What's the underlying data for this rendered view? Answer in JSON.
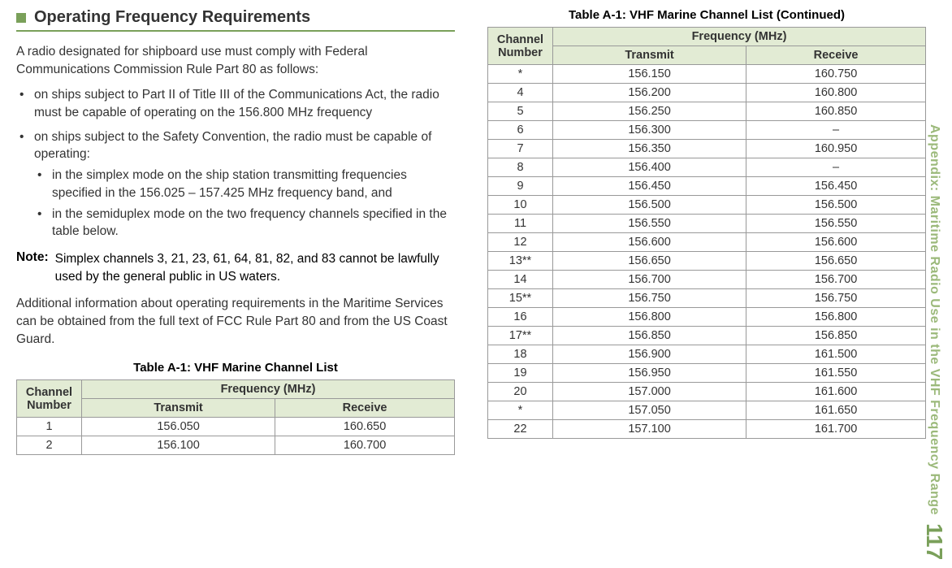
{
  "header": {
    "title": "Operating Frequency Requirements"
  },
  "intro": "A radio designated for shipboard use must comply with Federal Communications Commission Rule Part 80 as follows:",
  "bullets": {
    "b1": "on ships subject to Part II of Title III of the Communications Act, the radio must be capable of operating on the 156.800 MHz frequency",
    "b2": "on ships subject to the Safety Convention, the radio must be capable of operating:",
    "b2a": "in the simplex mode on the ship station transmitting frequencies specified in the 156.025 – 157.425 MHz frequency band, and",
    "b2b": "in the semiduplex mode on the two frequency channels specified in the table below."
  },
  "note": {
    "label": "Note:",
    "body": "Simplex channels 3, 21, 23, 61, 64, 81, 82, and 83 cannot be lawfully used by the general public in US waters."
  },
  "extra": "Additional information about operating requirements in the Maritime Services can be obtained from the full text of FCC Rule Part 80 and from the US Coast Guard.",
  "table1": {
    "title": "Table A-1: VHF Marine Channel List",
    "h_channel": "Channel Number",
    "h_freq": "Frequency (MHz)",
    "h_tx": "Transmit",
    "h_rx": "Receive",
    "r1c": "1",
    "r1t": "156.050",
    "r1r": "160.650",
    "r2c": "2",
    "r2t": "156.100",
    "r2r": "160.700"
  },
  "table2": {
    "title": "Table A-1: VHF Marine Channel List (Continued)",
    "h_channel": "Channel Number",
    "h_freq": "Frequency (MHz)",
    "h_tx": "Transmit",
    "h_rx": "Receive",
    "r": [
      {
        "c": "*",
        "t": "156.150",
        "r": "160.750"
      },
      {
        "c": "4",
        "t": "156.200",
        "r": "160.800"
      },
      {
        "c": "5",
        "t": "156.250",
        "r": "160.850"
      },
      {
        "c": "6",
        "t": "156.300",
        "r": "–"
      },
      {
        "c": "7",
        "t": "156.350",
        "r": "160.950"
      },
      {
        "c": "8",
        "t": "156.400",
        "r": "–"
      },
      {
        "c": "9",
        "t": "156.450",
        "r": "156.450"
      },
      {
        "c": "10",
        "t": "156.500",
        "r": "156.500"
      },
      {
        "c": "11",
        "t": "156.550",
        "r": "156.550"
      },
      {
        "c": "12",
        "t": "156.600",
        "r": "156.600"
      },
      {
        "c": "13**",
        "t": "156.650",
        "r": "156.650"
      },
      {
        "c": "14",
        "t": "156.700",
        "r": "156.700"
      },
      {
        "c": "15**",
        "t": "156.750",
        "r": "156.750"
      },
      {
        "c": "16",
        "t": "156.800",
        "r": "156.800"
      },
      {
        "c": "17**",
        "t": "156.850",
        "r": "156.850"
      },
      {
        "c": "18",
        "t": "156.900",
        "r": "161.500"
      },
      {
        "c": "19",
        "t": "156.950",
        "r": "161.550"
      },
      {
        "c": "20",
        "t": "157.000",
        "r": "161.600"
      },
      {
        "c": "*",
        "t": "157.050",
        "r": "161.650"
      },
      {
        "c": "22",
        "t": "157.100",
        "r": "161.700"
      }
    ]
  },
  "side": {
    "label": "Appendix: Maritime Radio Use in the VHF Frequency Range",
    "page": "117"
  },
  "colors": {
    "accent": "#7aa05a",
    "header_bg": "#e2ebd4"
  }
}
